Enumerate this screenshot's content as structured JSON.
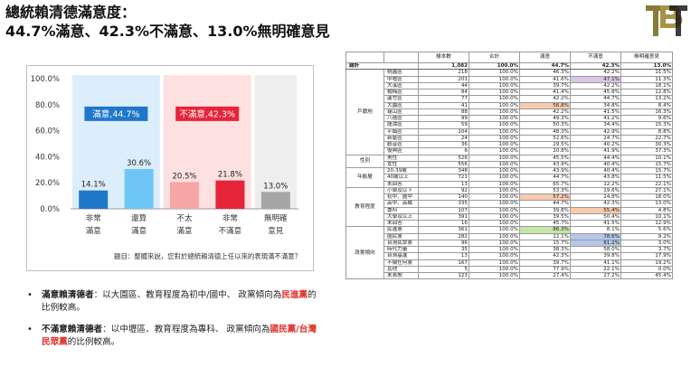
{
  "title": {
    "line1": "總統賴清德滿意度：",
    "line2": "44.7%滿意、42.3%不滿意、13.0%無明確意見"
  },
  "logo": {
    "text": "TBT",
    "icon": "tbt-logo-icon"
  },
  "chart_data": {
    "type": "bar",
    "categories": [
      [
        "非常",
        "滿意"
      ],
      [
        "還算",
        "滿意"
      ],
      [
        "不太",
        "滿意"
      ],
      [
        "非常",
        "不滿意"
      ],
      [
        "無明確",
        "意見"
      ]
    ],
    "values": [
      14.1,
      30.6,
      20.5,
      21.8,
      13.0
    ],
    "value_labels": [
      "14.1%",
      "30.6%",
      "20.5%",
      "21.8%",
      "13.0%"
    ],
    "colors": [
      "#1f77c9",
      "#6ec6f5",
      "#f7a6a6",
      "#e6243a",
      "#a6a6a6"
    ],
    "yticks": [
      "0.0%",
      "20.0%",
      "40.0%",
      "60.0%",
      "80.0%",
      "100.0%"
    ],
    "ylim": [
      0,
      100
    ],
    "groups": [
      {
        "label": "滿意,44.7%",
        "from": 0,
        "to": 1,
        "bg": "#dceefb",
        "label_bg": "#1f77c9"
      },
      {
        "label": "不滿意,42.3%",
        "from": 2,
        "to": 3,
        "bg": "#fde0e0",
        "label_bg": "#e6243a"
      },
      {
        "label": "",
        "from": 4,
        "to": 4,
        "bg": "#eeeeee",
        "label_bg": ""
      }
    ],
    "caption": "題目：整體來說，您對於總統賴清德上任以來的表現滿不滿意？"
  },
  "bullets": [
    {
      "lead": "滿意賴清德者",
      "text_a": "：以大園區、教育程度為初中/國中、 政黨傾向為",
      "emph": "民進黨",
      "text_b": "的比例較高。"
    },
    {
      "lead": "不滿意賴清德者",
      "text_a": "：以中壢區、教育程度為專科、 政黨傾向為",
      "emph": "國民黨/台灣民眾黨",
      "text_b": "的比例較高。"
    }
  ],
  "table": {
    "headers": [
      "樣本數",
      "合計",
      "滿意",
      "不滿意",
      "無明確意見"
    ],
    "total": {
      "label": "總計",
      "cells": [
        "1,082",
        "100.0%",
        "44.7%",
        "42.3%",
        "13.0%"
      ]
    },
    "groups": [
      {
        "name": "戶籍地",
        "rows": [
          {
            "label": "桃園區",
            "cells": [
              "218",
              "100.0%",
              "46.3%",
              "42.2%",
              "11.5%"
            ],
            "hl": [
              "",
              "",
              "",
              "",
              ""
            ]
          },
          {
            "label": "中壢區",
            "cells": [
              "201",
              "100.0%",
              "41.6%",
              "47.1%",
              "11.3%"
            ],
            "hl": [
              "",
              "",
              "",
              "p",
              ""
            ]
          },
          {
            "label": "大溪區",
            "cells": [
              "44",
              "100.0%",
              "39.7%",
              "42.2%",
              "18.1%"
            ],
            "hl": [
              "",
              "",
              "",
              "",
              ""
            ]
          },
          {
            "label": "楊梅區",
            "cells": [
              "84",
              "100.0%",
              "41.4%",
              "45.8%",
              "12.8%"
            ],
            "hl": [
              "",
              "",
              "",
              "",
              ""
            ]
          },
          {
            "label": "蘆竹區",
            "cells": [
              "77",
              "100.0%",
              "42.2%",
              "44.7%",
              "13.2%"
            ],
            "hl": [
              "",
              "",
              "",
              "",
              ""
            ]
          },
          {
            "label": "大園區",
            "cells": [
              "41",
              "100.0%",
              "56.8%",
              "34.8%",
              "8.4%"
            ],
            "hl": [
              "",
              "",
              "o",
              "",
              ""
            ]
          },
          {
            "label": "龜山區",
            "cells": [
              "88",
              "100.0%",
              "42.2%",
              "41.5%",
              "16.3%"
            ],
            "hl": [
              "",
              "",
              "",
              "",
              ""
            ]
          },
          {
            "label": "八德區",
            "cells": [
              "99",
              "100.0%",
              "49.3%",
              "41.2%",
              "9.6%"
            ],
            "hl": [
              "",
              "",
              "",
              "",
              ""
            ]
          },
          {
            "label": "龍潭區",
            "cells": [
              "59",
              "100.0%",
              "50.3%",
              "34.4%",
              "15.3%"
            ],
            "hl": [
              "",
              "",
              "",
              "",
              ""
            ]
          },
          {
            "label": "平鎮區",
            "cells": [
              "104",
              "100.0%",
              "48.3%",
              "42.9%",
              "8.8%"
            ],
            "hl": [
              "",
              "",
              "",
              "",
              ""
            ]
          },
          {
            "label": "新屋區",
            "cells": [
              "24",
              "100.0%",
              "52.6%",
              "24.7%",
              "22.7%"
            ],
            "hl": [
              "",
              "",
              "",
              "",
              ""
            ]
          },
          {
            "label": "觀音區",
            "cells": [
              "36",
              "100.0%",
              "29.5%",
              "40.2%",
              "30.3%"
            ],
            "hl": [
              "",
              "",
              "",
              "",
              ""
            ]
          },
          {
            "label": "復興區",
            "cells": [
              "6",
              "100.0%",
              "20.8%",
              "41.9%",
              "37.3%"
            ],
            "hl": [
              "",
              "",
              "",
              "",
              ""
            ]
          }
        ]
      },
      {
        "name": "性別",
        "rows": [
          {
            "label": "男性",
            "cells": [
              "526",
              "100.0%",
              "45.5%",
              "44.4%",
              "10.1%"
            ],
            "hl": [
              "",
              "",
              "",
              "",
              ""
            ]
          },
          {
            "label": "女性",
            "cells": [
              "556",
              "100.0%",
              "43.9%",
              "40.4%",
              "15.7%"
            ],
            "hl": [
              "",
              "",
              "",
              "",
              ""
            ]
          }
        ]
      },
      {
        "name": "年齡層",
        "rows": [
          {
            "label": "20-39歲",
            "cells": [
              "348",
              "100.0%",
              "43.9%",
              "40.4%",
              "15.7%"
            ],
            "hl": [
              "",
              "",
              "",
              "",
              ""
            ]
          },
          {
            "label": "40歲以上",
            "cells": [
              "721",
              "100.0%",
              "44.7%",
              "43.8%",
              "11.5%"
            ],
            "hl": [
              "",
              "",
              "",
              "",
              ""
            ]
          },
          {
            "label": "未回答",
            "cells": [
              "13",
              "100.0%",
              "65.7%",
              "12.2%",
              "22.1%"
            ],
            "hl": [
              "",
              "",
              "",
              "",
              ""
            ]
          }
        ]
      },
      {
        "name": "教育程度",
        "rows": [
          {
            "label": "小學及以下",
            "cells": [
              "92",
              "100.0%",
              "53.3%",
              "19.6%",
              "27.1%"
            ],
            "hl": [
              "",
              "",
              "",
              "",
              ""
            ]
          },
          {
            "label": "初中、國中",
            "cells": [
              "140",
              "100.0%",
              "57.2%",
              "24.8%",
              "18.0%"
            ],
            "hl": [
              "",
              "",
              "o",
              "",
              ""
            ]
          },
          {
            "label": "高中、高職",
            "cells": [
              "335",
              "100.0%",
              "44.7%",
              "42.3%",
              "13.0%"
            ],
            "hl": [
              "",
              "",
              "",
              "",
              ""
            ]
          },
          {
            "label": "專科",
            "cells": [
              "107",
              "100.0%",
              "39.8%",
              "55.4%",
              "4.8%"
            ],
            "hl": [
              "",
              "",
              "",
              "o",
              ""
            ]
          },
          {
            "label": "大學及以上",
            "cells": [
              "391",
              "100.0%",
              "39.5%",
              "50.4%",
              "10.1%"
            ],
            "hl": [
              "",
              "",
              "",
              "",
              ""
            ]
          },
          {
            "label": "未回答",
            "cells": [
              "16",
              "100.0%",
              "45.7%",
              "41.5%",
              "12.9%"
            ],
            "hl": [
              "",
              "",
              "",
              "",
              ""
            ]
          }
        ]
      },
      {
        "name": "政黨傾向",
        "rows": [
          {
            "label": "民進黨",
            "cells": [
              "361",
              "100.0%",
              "86.3%",
              "8.1%",
              "5.6%"
            ],
            "hl": [
              "",
              "",
              "g",
              "",
              ""
            ]
          },
          {
            "label": "國民黨",
            "cells": [
              "282",
              "100.0%",
              "12.1%",
              "78.6%",
              "9.2%"
            ],
            "hl": [
              "",
              "",
              "",
              "b",
              ""
            ]
          },
          {
            "label": "台灣民眾黨",
            "cells": [
              "96",
              "100.0%",
              "15.7%",
              "81.2%",
              "3.0%"
            ],
            "hl": [
              "",
              "",
              "",
              "b",
              ""
            ]
          },
          {
            "label": "時代力量",
            "cells": [
              "35",
              "100.0%",
              "38.3%",
              "58.0%",
              "3.7%"
            ],
            "hl": [
              "",
              "",
              "",
              "",
              ""
            ]
          },
          {
            "label": "台灣基進",
            "cells": [
              "13",
              "100.0%",
              "42.3%",
              "39.8%",
              "17.9%"
            ],
            "hl": [
              "",
              "",
              "",
              "",
              ""
            ]
          },
          {
            "label": "不偏任何黨",
            "cells": [
              "167",
              "100.0%",
              "39.7%",
              "41.1%",
              "19.2%"
            ],
            "hl": [
              "",
              "",
              "",
              "",
              ""
            ]
          },
          {
            "label": "其他",
            "cells": [
              "5",
              "100.0%",
              "77.9%",
              "22.1%",
              "0.0%"
            ],
            "hl": [
              "",
              "",
              "",
              "",
              ""
            ]
          },
          {
            "label": "未表態",
            "cells": [
              "123",
              "100.0%",
              "27.4%",
              "27.2%",
              "45.4%"
            ],
            "hl": [
              "",
              "",
              "",
              "",
              ""
            ]
          }
        ]
      }
    ]
  }
}
